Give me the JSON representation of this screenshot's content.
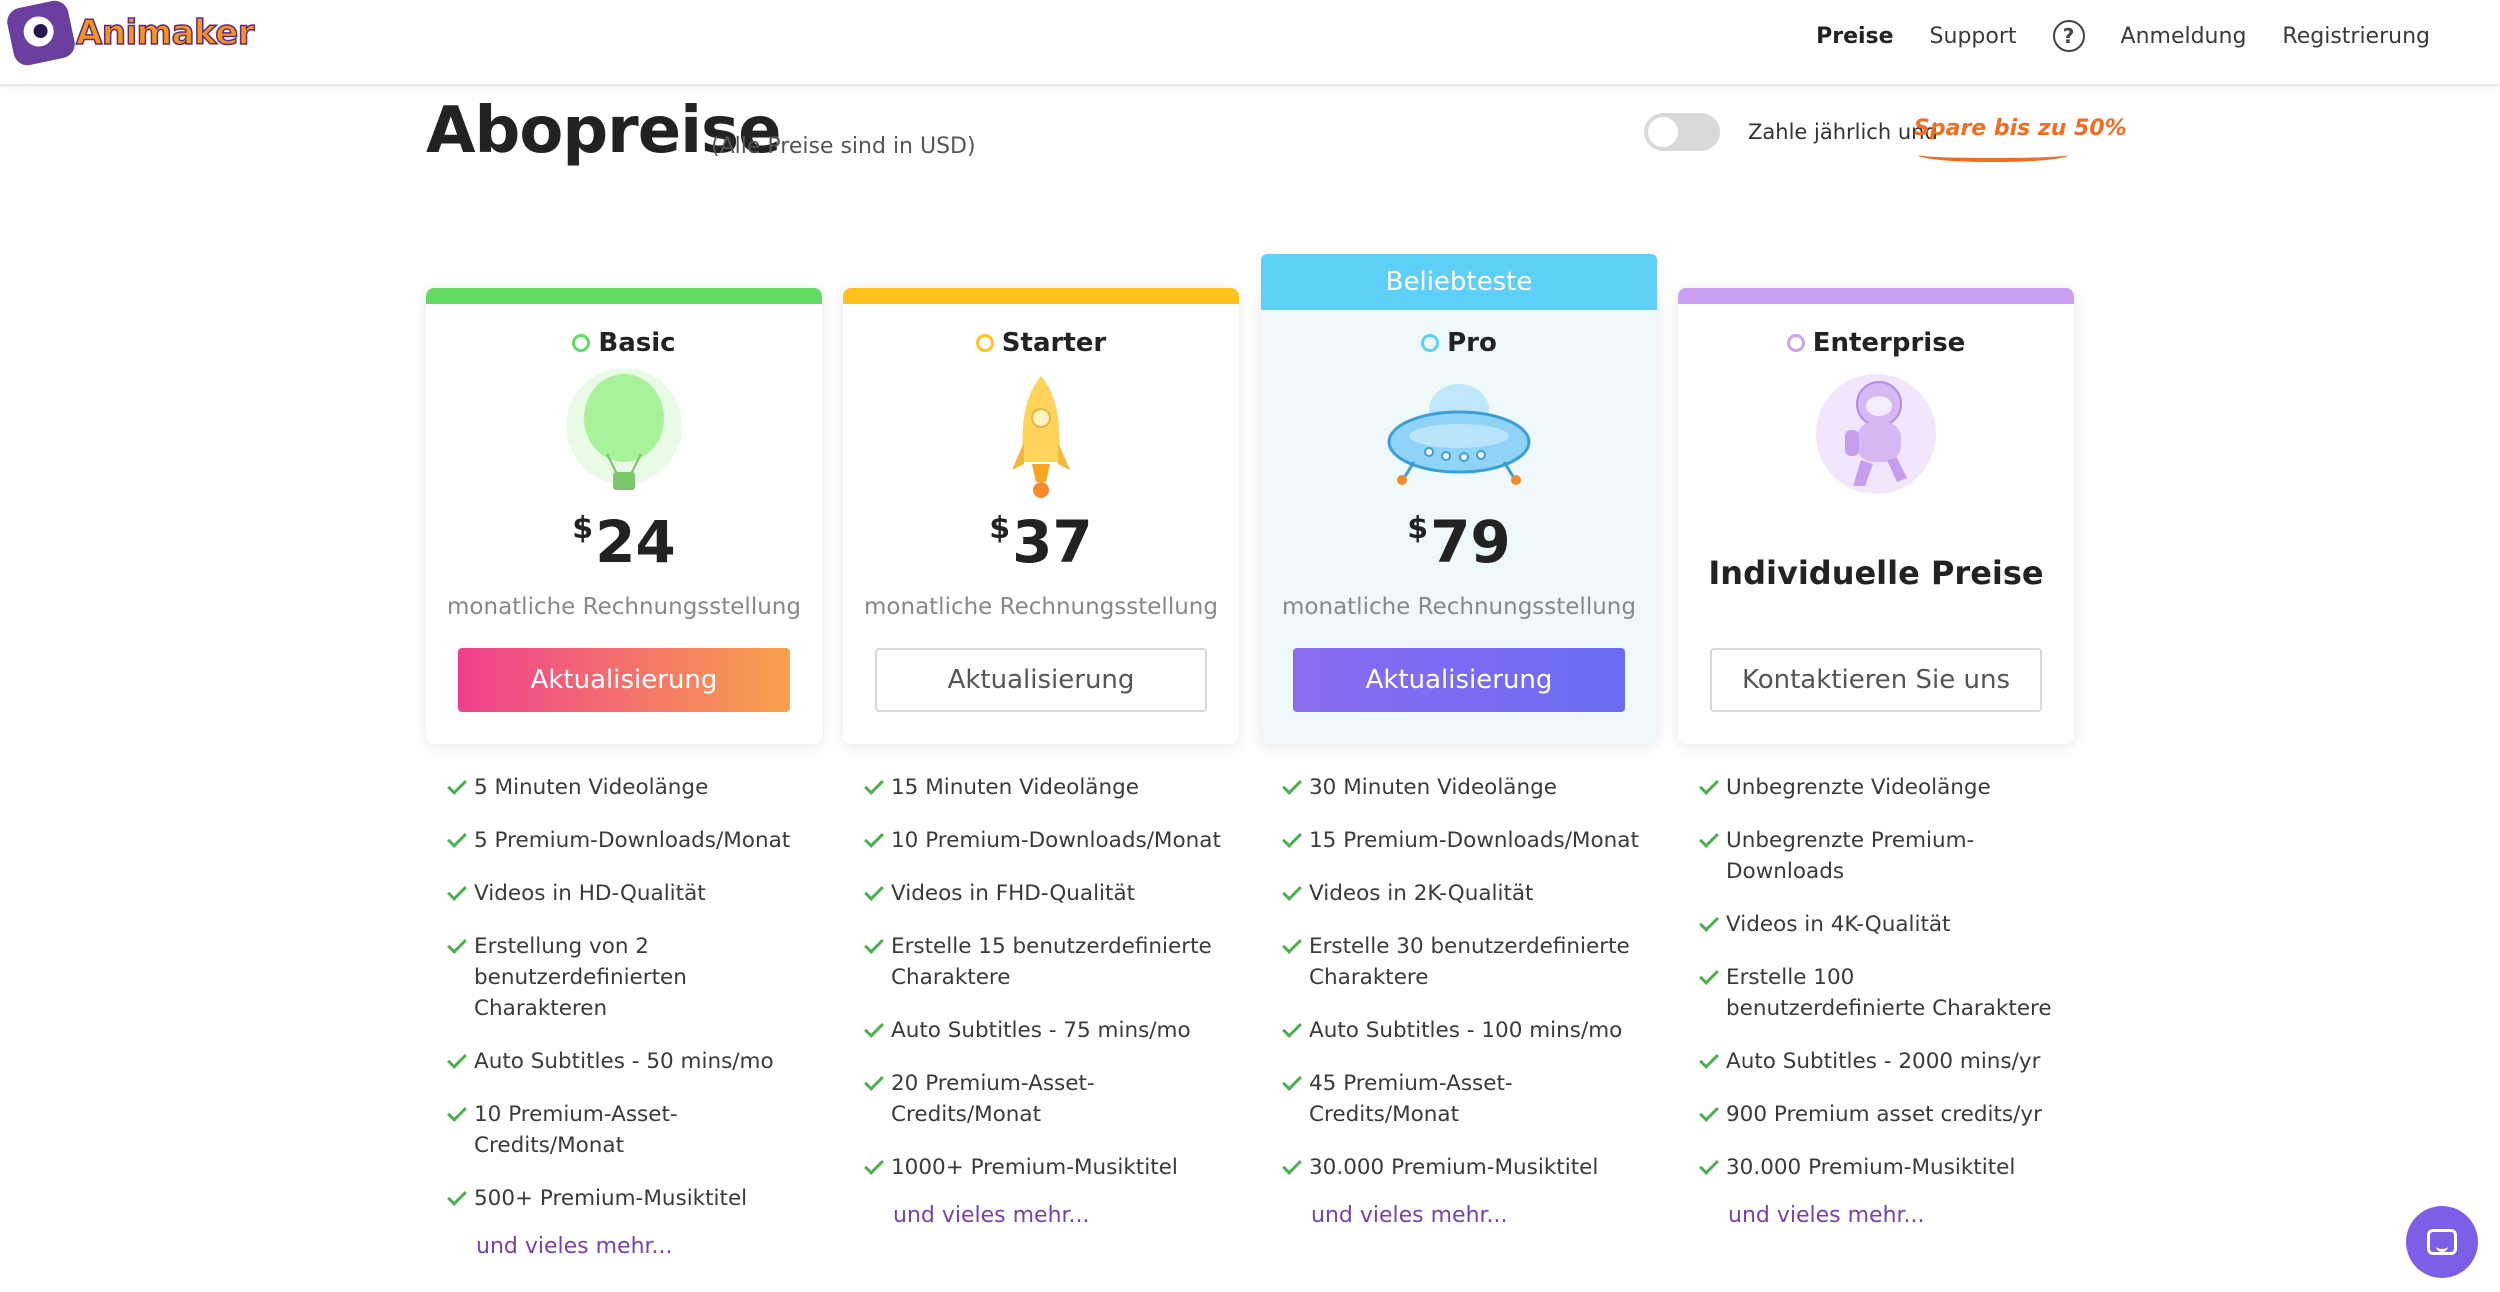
{
  "header": {
    "logo_text": "Animaker",
    "nav": {
      "pricing": "Preise",
      "support": "Support",
      "help": "?",
      "login": "Anmeldung",
      "register": "Registrierung"
    }
  },
  "title": {
    "heading": "Abopreise",
    "subtitle": "(Alle Preise sind in USD)"
  },
  "billing_toggle": {
    "label": "Zahle jährlich und",
    "save_label": "Spare bis zu 50%",
    "checked": false
  },
  "colors": {
    "basic": "#62d962",
    "starter": "#ffc21f",
    "pro": "#5ecff7",
    "enterprise": "#cba0f2",
    "check": "#4caf50",
    "link": "#7b3fb0"
  },
  "plans": [
    {
      "name": "Basic",
      "icon": "balloon-icon",
      "currency": "$",
      "price": "24",
      "billing": "monatliche Rechnungsstellung",
      "button": "Aktualisierung",
      "features": [
        "5 Minuten Videolänge",
        "5 Premium-Downloads/Monat",
        "Videos in HD-Qualität",
        "Erstellung von 2 benutzerdefinierten Charakteren",
        "Auto Subtitles - 50 mins/mo",
        "10 Premium-Asset-Credits/Monat",
        "500+ Premium-Musiktitel"
      ],
      "more": "und vieles mehr..."
    },
    {
      "name": "Starter",
      "icon": "rocket-icon",
      "currency": "$",
      "price": "37",
      "billing": "monatliche Rechnungsstellung",
      "button": "Aktualisierung",
      "features": [
        "15 Minuten Videolänge",
        "10 Premium-Downloads/Monat",
        "Videos in FHD-Qualität",
        "Erstelle 15 benutzerdefinierte Charaktere",
        "Auto Subtitles - 75 mins/mo",
        "20 Premium-Asset-Credits/Monat",
        "1000+ Premium-Musiktitel"
      ],
      "more": "und vieles mehr..."
    },
    {
      "name": "Pro",
      "icon": "ufo-icon",
      "popular_label": "Beliebteste",
      "currency": "$",
      "price": "79",
      "billing": "monatliche Rechnungsstellung",
      "button": "Aktualisierung",
      "features": [
        "30 Minuten Videolänge",
        "15 Premium-Downloads/Monat",
        "Videos in 2K-Qualität",
        "Erstelle 30 benutzerdefinierte Charaktere",
        "Auto Subtitles - 100 mins/mo",
        "45 Premium-Asset-Credits/Monat",
        "30.000 Premium-Musiktitel"
      ],
      "more": "und vieles mehr..."
    },
    {
      "name": "Enterprise",
      "icon": "astronaut-icon",
      "custom_price": "Individuelle Preise",
      "button": "Kontaktieren Sie uns",
      "features": [
        "Unbegrenzte Videolänge",
        "Unbegrenzte Premium-Downloads",
        "Videos in 4K-Qualität",
        "Erstelle 100 benutzerdefinierte Charaktere",
        "Auto Subtitles - 2000 mins/yr",
        "900 Premium asset credits/yr",
        "30.000 Premium-Musiktitel"
      ],
      "more": "und vieles mehr..."
    }
  ],
  "chat_icon": "chat-icon"
}
